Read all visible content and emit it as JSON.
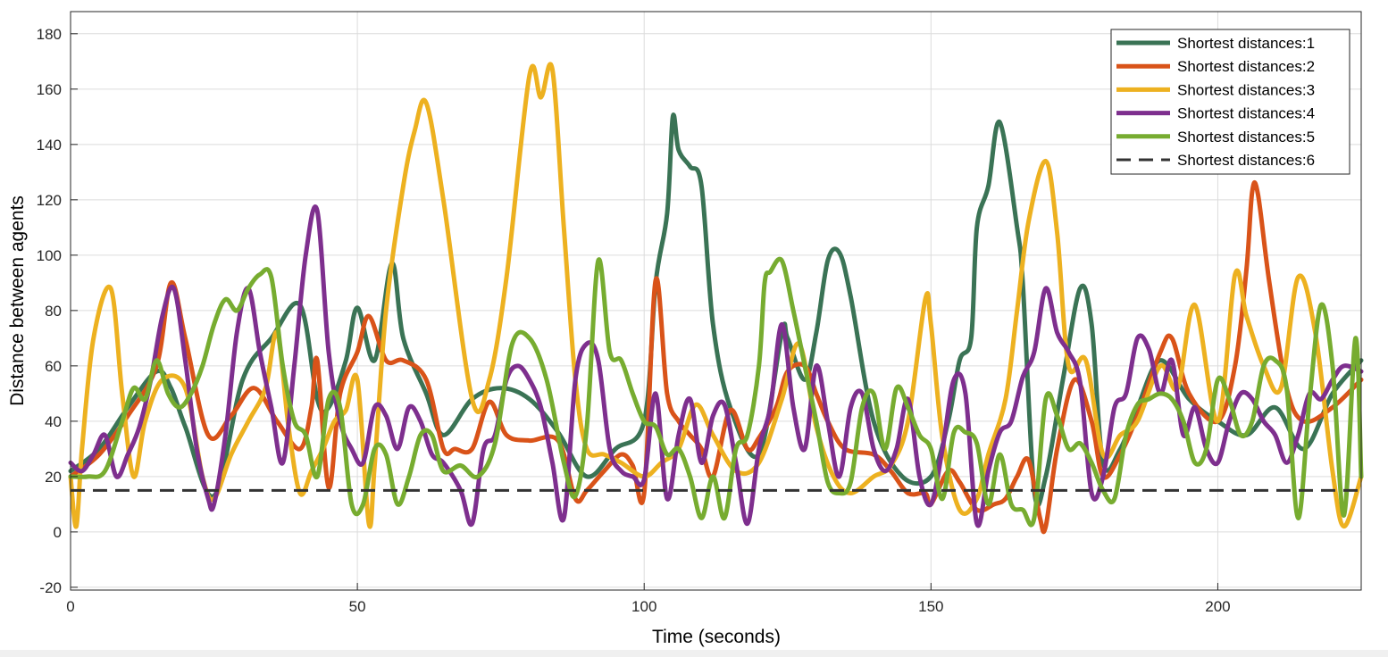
{
  "chart_data": {
    "type": "line",
    "xlabel": "Time (seconds)",
    "ylabel": "Distance between agents",
    "xlim": [
      0,
      225
    ],
    "ylim": [
      -21,
      188
    ],
    "xticks": [
      0,
      50,
      100,
      150,
      200
    ],
    "yticks": [
      -20,
      0,
      20,
      40,
      60,
      80,
      100,
      120,
      140,
      160,
      180
    ],
    "grid": true,
    "legend_position": "top-right",
    "series": [
      {
        "name": "Shortest distances:1",
        "color": "#3a7355",
        "style": "solid",
        "x": [
          0,
          5,
          10,
          15,
          17.5,
          20,
          25,
          30,
          35,
          40,
          43,
          45,
          48,
          50,
          53,
          56,
          58,
          62,
          65,
          70,
          75,
          80,
          85,
          90,
          95,
          100,
          102,
          104,
          105,
          106,
          108,
          110,
          112,
          115,
          120,
          124,
          125,
          128,
          130,
          132,
          134,
          136,
          140,
          145,
          150,
          153,
          155,
          157,
          158,
          160,
          162,
          165,
          166,
          168,
          170,
          173,
          176,
          178,
          180,
          183,
          186,
          190,
          195,
          200,
          205,
          210,
          215,
          220,
          225
        ],
        "values": [
          22,
          30,
          45,
          58,
          52,
          38,
          13,
          55,
          70,
          82,
          48,
          45,
          62,
          81,
          62,
          97,
          70,
          50,
          35,
          48,
          52,
          48,
          36,
          20,
          30,
          40,
          90,
          115,
          150,
          138,
          132,
          125,
          75,
          45,
          28,
          72,
          70,
          55,
          72,
          98,
          101,
          85,
          40,
          20,
          20,
          40,
          62,
          70,
          110,
          125,
          148,
          110,
          90,
          15,
          20,
          55,
          88,
          75,
          25,
          30,
          45,
          62,
          48,
          40,
          35,
          45,
          30,
          50,
          62
        ]
      },
      {
        "name": "Shortest distances:2",
        "color": "#d95319",
        "style": "solid",
        "x": [
          0,
          5,
          10,
          15,
          17.5,
          20,
          24,
          28,
          32,
          36,
          40,
          42,
          43,
          45,
          47,
          50,
          52,
          55,
          58,
          62,
          65,
          67,
          70,
          73,
          76,
          80,
          85,
          88,
          90,
          93,
          96,
          98,
          100,
          102,
          104,
          106,
          108,
          110,
          112,
          115,
          118,
          120,
          123,
          125,
          128,
          130,
          132,
          135,
          140,
          143,
          146,
          149,
          150,
          153,
          155,
          158,
          161,
          163,
          165,
          167,
          169,
          170,
          172,
          175,
          178,
          180,
          183,
          186,
          190,
          192,
          195,
          200,
          203,
          205,
          206,
          207,
          209,
          212,
          215,
          220,
          225
        ],
        "values": [
          20,
          28,
          42,
          60,
          90,
          70,
          35,
          42,
          52,
          40,
          30,
          45,
          62,
          16,
          50,
          65,
          78,
          62,
          62,
          55,
          30,
          30,
          30,
          47,
          35,
          33,
          33,
          12,
          15,
          22,
          28,
          24,
          14,
          91,
          50,
          40,
          35,
          30,
          20,
          44,
          30,
          34,
          45,
          58,
          60,
          50,
          40,
          30,
          28,
          22,
          14,
          14,
          10,
          22,
          18,
          8,
          10,
          12,
          20,
          26,
          5,
          2,
          30,
          55,
          40,
          20,
          28,
          42,
          65,
          70,
          50,
          40,
          60,
          95,
          123,
          122,
          90,
          52,
          40,
          45,
          55
        ]
      },
      {
        "name": "Shortest distances:3",
        "color": "#edb120",
        "style": "solid",
        "x": [
          0,
          1,
          2,
          4,
          7,
          9,
          11,
          13,
          16,
          20,
          23,
          25,
          28,
          31,
          34,
          36,
          38,
          40,
          42,
          44,
          46,
          48,
          50,
          52,
          53,
          55,
          58,
          60,
          62,
          65,
          70,
          73,
          76,
          80,
          82,
          84,
          86,
          88,
          90,
          93,
          96,
          100,
          103,
          106,
          109,
          112,
          116,
          120,
          124,
          127,
          130,
          133,
          136,
          140,
          143,
          146,
          149,
          150,
          152,
          155,
          158,
          160,
          163,
          165,
          167,
          170,
          172,
          174,
          177,
          180,
          183,
          186,
          190,
          193,
          196,
          200,
          203,
          205,
          208,
          211,
          214,
          217,
          220,
          222,
          225
        ],
        "values": [
          20,
          2,
          30,
          70,
          88,
          50,
          20,
          40,
          55,
          52,
          20,
          12,
          28,
          40,
          52,
          72,
          38,
          14,
          22,
          30,
          40,
          44,
          55,
          3,
          24,
          80,
          125,
          145,
          155,
          120,
          48,
          55,
          92,
          165,
          157,
          167,
          110,
          55,
          30,
          28,
          25,
          20,
          25,
          30,
          46,
          35,
          22,
          25,
          48,
          68,
          38,
          20,
          14,
          20,
          24,
          40,
          84,
          75,
          34,
          8,
          12,
          28,
          48,
          80,
          112,
          134,
          108,
          60,
          62,
          28,
          35,
          40,
          60,
          52,
          82,
          40,
          93,
          78,
          60,
          52,
          92,
          72,
          22,
          2,
          20
        ]
      },
      {
        "name": "Shortest distances:4",
        "color": "#7e2f8e",
        "style": "solid",
        "x": [
          0,
          2,
          4,
          6,
          8,
          10,
          12,
          14,
          16,
          18,
          20,
          22,
          24,
          25,
          27,
          29,
          31,
          33,
          35,
          37,
          39,
          41,
          43,
          45,
          47,
          49,
          51,
          53,
          55,
          57,
          59,
          61,
          63,
          65,
          68,
          70,
          72,
          74,
          76,
          78,
          80,
          82,
          84,
          86,
          88,
          90,
          92,
          94,
          96,
          98,
          100,
          102,
          104,
          106,
          108,
          110,
          112,
          114,
          116,
          118,
          120,
          122,
          124,
          126,
          128,
          130,
          132,
          134,
          136,
          138,
          140,
          142,
          144,
          146,
          148,
          150,
          152,
          154,
          156,
          158,
          160,
          162,
          164,
          166,
          168,
          170,
          172,
          174,
          176,
          178,
          180,
          182,
          184,
          186,
          188,
          190,
          192,
          194,
          196,
          198,
          200,
          202,
          204,
          206,
          208,
          210,
          212,
          214,
          216,
          218,
          220,
          222,
          225
        ],
        "values": [
          25,
          22,
          28,
          35,
          20,
          28,
          38,
          55,
          78,
          88,
          62,
          30,
          12,
          10,
          35,
          72,
          88,
          65,
          45,
          25,
          60,
          100,
          116,
          65,
          40,
          30,
          25,
          45,
          42,
          30,
          45,
          40,
          28,
          25,
          15,
          3,
          30,
          35,
          55,
          60,
          55,
          45,
          25,
          5,
          55,
          68,
          62,
          30,
          22,
          20,
          19,
          50,
          12,
          35,
          48,
          25,
          42,
          46,
          25,
          3,
          30,
          45,
          75,
          45,
          30,
          60,
          40,
          20,
          45,
          50,
          30,
          22,
          30,
          48,
          20,
          10,
          30,
          55,
          50,
          3,
          22,
          36,
          40,
          56,
          65,
          88,
          72,
          65,
          54,
          14,
          20,
          45,
          50,
          70,
          66,
          50,
          62,
          35,
          45,
          30,
          25,
          40,
          50,
          48,
          40,
          35,
          25,
          35,
          50,
          48,
          55,
          60,
          58
        ]
      },
      {
        "name": "Shortest distances:5",
        "color": "#77ac30",
        "style": "solid",
        "x": [
          0,
          3,
          6,
          9,
          11,
          13,
          15,
          17,
          19,
          21,
          23,
          25,
          27,
          29,
          31,
          33,
          35,
          37,
          39,
          41,
          43,
          45,
          47,
          49,
          51,
          53,
          55,
          57,
          59,
          61,
          63,
          65,
          68,
          71,
          74,
          77,
          80,
          83,
          86,
          88,
          90,
          92,
          94,
          96,
          98,
          100,
          102,
          104,
          106,
          108,
          110,
          112,
          114,
          116,
          118,
          120,
          121,
          122,
          124,
          126,
          128,
          130,
          132,
          134,
          136,
          138,
          140,
          142,
          144,
          146,
          148,
          150,
          152,
          154,
          156,
          158,
          160,
          162,
          164,
          166,
          168,
          170,
          172,
          174,
          176,
          178,
          180,
          182,
          184,
          186,
          188,
          190,
          192,
          194,
          196,
          198,
          200,
          202,
          204,
          206,
          208,
          210,
          212,
          214,
          216,
          218,
          220,
          222,
          224,
          225
        ],
        "values": [
          20,
          20,
          22,
          40,
          52,
          48,
          62,
          50,
          45,
          50,
          60,
          75,
          84,
          80,
          88,
          93,
          92,
          60,
          40,
          35,
          20,
          48,
          45,
          10,
          10,
          30,
          28,
          10,
          20,
          35,
          35,
          22,
          24,
          20,
          32,
          68,
          70,
          55,
          25,
          13,
          38,
          98,
          65,
          62,
          50,
          40,
          38,
          28,
          30,
          20,
          5,
          20,
          5,
          30,
          35,
          60,
          90,
          94,
          98,
          80,
          60,
          40,
          18,
          14,
          18,
          45,
          50,
          30,
          52,
          45,
          35,
          30,
          12,
          36,
          36,
          32,
          10,
          28,
          10,
          8,
          5,
          48,
          42,
          30,
          32,
          25,
          15,
          12,
          35,
          46,
          48,
          50,
          48,
          40,
          25,
          30,
          55,
          48,
          35,
          40,
          60,
          62,
          52,
          5,
          48,
          82,
          60,
          6,
          70,
          20
        ]
      },
      {
        "name": "Shortest distances:6",
        "color": "#333333",
        "style": "dashed",
        "x": [
          0,
          225
        ],
        "values": [
          15,
          15
        ]
      }
    ]
  }
}
